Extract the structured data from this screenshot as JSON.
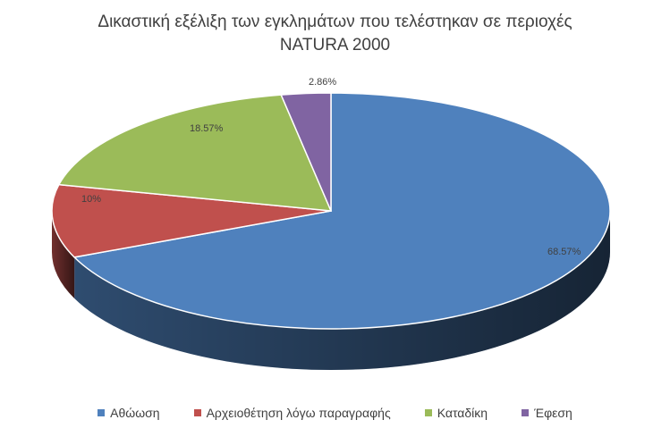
{
  "chart_data": {
    "type": "pie",
    "title_lines": [
      "Δικαστική εξέλιξη των εγκλημάτων που τελέστηκαν σε περιοχές",
      "NATURA 2000"
    ],
    "slices": [
      {
        "label": "Αθώωση",
        "value": 68.57,
        "display": "68.57%",
        "color": "#4f81bd"
      },
      {
        "label": "Αρχειοθέτηση λόγω παραγραφής",
        "value": 10,
        "display": "10%",
        "color": "#c0504d"
      },
      {
        "label": "Καταδίκη",
        "value": 18.57,
        "display": "18.57%",
        "color": "#9bbb59"
      },
      {
        "label": "Έφεση",
        "value": 2.86,
        "display": "2.86%",
        "color": "#8064a2"
      }
    ],
    "legend_position": "bottom",
    "style": "3d"
  }
}
